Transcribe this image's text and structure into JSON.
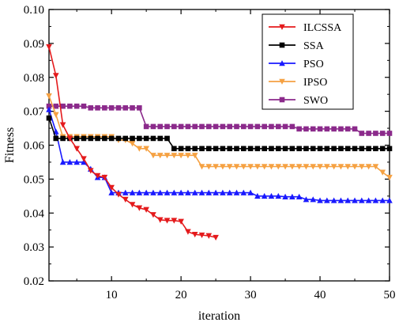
{
  "chart_data": {
    "type": "line",
    "title": "",
    "xlabel": "iteration",
    "ylabel": "Fitness",
    "xlim": [
      1,
      50
    ],
    "ylim": [
      0.02,
      0.1
    ],
    "x_ticks": [
      10,
      20,
      30,
      40,
      50
    ],
    "x_tick_labels": [
      "10",
      "20",
      "30",
      "40",
      "50"
    ],
    "y_ticks": [
      0.02,
      0.03,
      0.04,
      0.05,
      0.06,
      0.07,
      0.08,
      0.09,
      0.1
    ],
    "y_tick_labels": [
      "0.02",
      "0.03",
      "0.04",
      "0.05",
      "0.06",
      "0.07",
      "0.08",
      "0.09",
      "0.10"
    ],
    "grid": false,
    "legend_position": "top-right",
    "series": [
      {
        "name": "ILCSSA",
        "color": "#e41a1c",
        "marker": "triangle-down",
        "x": [
          1,
          2,
          3,
          4,
          5,
          6,
          7,
          8,
          9,
          10,
          11,
          12,
          13,
          14,
          15,
          16,
          17,
          18,
          19,
          20,
          21,
          22,
          23,
          24,
          25
        ],
        "y": [
          0.089,
          0.0805,
          0.066,
          0.062,
          0.059,
          0.056,
          0.0525,
          0.051,
          0.0505,
          0.0475,
          0.0455,
          0.044,
          0.0425,
          0.0415,
          0.041,
          0.0395,
          0.038,
          0.0378,
          0.0378,
          0.0375,
          0.0345,
          0.0337,
          0.0335,
          0.0333,
          0.0328
        ]
      },
      {
        "name": "SSA",
        "color": "#000000",
        "marker": "square",
        "x": [
          1,
          2,
          18,
          19,
          50
        ],
        "y": [
          0.068,
          0.062,
          0.062,
          0.059,
          0.059
        ]
      },
      {
        "name": "PSO",
        "color": "#1a1aff",
        "marker": "triangle-up",
        "x": [
          1,
          2,
          3,
          6,
          7,
          8,
          9,
          10,
          30,
          31,
          35,
          37,
          38,
          40,
          50
        ],
        "y": [
          0.0705,
          0.064,
          0.055,
          0.055,
          0.053,
          0.0505,
          0.0505,
          0.046,
          0.046,
          0.045,
          0.0448,
          0.0448,
          0.044,
          0.0437,
          0.0437
        ]
      },
      {
        "name": "IPSO",
        "color": "#f5a142",
        "marker": "triangle-down",
        "x": [
          1,
          2,
          3,
          10,
          11,
          12,
          13,
          14,
          15,
          16,
          22,
          23,
          48,
          49,
          50
        ],
        "y": [
          0.0745,
          0.069,
          0.0625,
          0.0625,
          0.0615,
          0.0615,
          0.0605,
          0.059,
          0.059,
          0.057,
          0.057,
          0.0537,
          0.0537,
          0.052,
          0.0505
        ]
      },
      {
        "name": "SWO",
        "color": "#8b2a8b",
        "marker": "square",
        "x": [
          1,
          6,
          7,
          14,
          15,
          36,
          37,
          45,
          46,
          50
        ],
        "y": [
          0.0715,
          0.0715,
          0.071,
          0.071,
          0.0655,
          0.0655,
          0.0648,
          0.0648,
          0.0635,
          0.0635
        ]
      }
    ]
  }
}
